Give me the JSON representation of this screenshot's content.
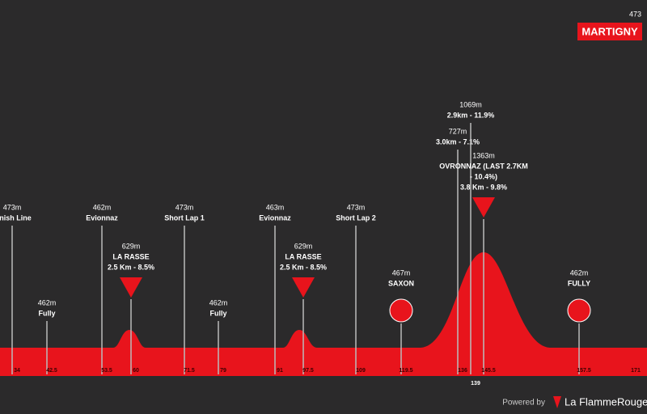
{
  "header": {
    "finish_altitude": "473",
    "finish_name": "MARTIGNY"
  },
  "points": [
    {
      "lines": [
        "473m",
        "Finish Line"
      ],
      "km": "34"
    },
    {
      "lines": [
        "462m",
        "Fully"
      ],
      "km": "42.5"
    },
    {
      "lines": [
        "462m",
        "Evionnaz"
      ],
      "km": "53.5"
    },
    {
      "lines": [
        "629m",
        "LA RASSE",
        "2.5 Km - 8.5%"
      ],
      "km": "60"
    },
    {
      "lines": [
        "473m",
        "Short Lap 1"
      ],
      "km": "71.5"
    },
    {
      "lines": [
        "462m",
        "Fully"
      ],
      "km": "79"
    },
    {
      "lines": [
        "463m",
        "Evionnaz"
      ],
      "km": "91"
    },
    {
      "lines": [
        "629m",
        "LA RASSE",
        "2.5 Km - 8.5%"
      ],
      "km": "97.5"
    },
    {
      "lines": [
        "473m",
        "Short Lap 2"
      ],
      "km": "109"
    },
    {
      "lines": [
        "467m",
        "SAXON"
      ],
      "km": "119.5"
    },
    {
      "lines": [
        "727m",
        "3.0km - 7.1%"
      ],
      "km": "136"
    },
    {
      "lines": [
        "1069m",
        "2.9km - 11.9%"
      ],
      "km": "139"
    },
    {
      "lines": [
        "1363m",
        "OVRONNAZ (LAST 2.7KM",
        "- 10.4%)",
        "3.8 Km - 9.8%"
      ],
      "km": "145.5"
    },
    {
      "lines": [
        "462m",
        "FULLY"
      ],
      "km": "157.5"
    },
    {
      "lines": [],
      "km": "171"
    }
  ],
  "footer": {
    "powered_by": "Powered by",
    "brand": "La FlammeRouge"
  }
}
